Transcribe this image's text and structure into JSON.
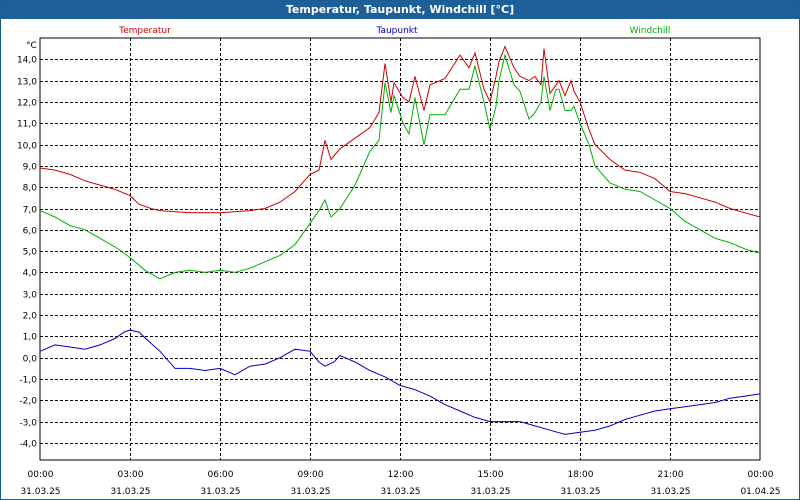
{
  "window": {
    "title": "Temperatur, Taupunkt, Windchill [°C]"
  },
  "chart_data": {
    "type": "line",
    "title": "Temperatur, Taupunkt, Windchill [°C]",
    "ylabel": "°C",
    "ylim": [
      -4.8,
      15.0
    ],
    "xlim": [
      0,
      24
    ],
    "grid": true,
    "yticks": [
      "14,0",
      "13,0",
      "12,0",
      "11,0",
      "10,0",
      "9,0",
      "8,0",
      "7,0",
      "6,0",
      "5,0",
      "4,0",
      "3,0",
      "2,0",
      "1,0",
      "0,0",
      "-1,0",
      "-2,0",
      "-3,0",
      "-4,0"
    ],
    "xticks": [
      {
        "time": "00:00",
        "date": "31.03.25"
      },
      {
        "time": "03:00",
        "date": "31.03.25"
      },
      {
        "time": "06:00",
        "date": "31.03.25"
      },
      {
        "time": "09:00",
        "date": "31.03.25"
      },
      {
        "time": "12:00",
        "date": "31.03.25"
      },
      {
        "time": "15:00",
        "date": "31.03.25"
      },
      {
        "time": "18:00",
        "date": "31.03.25"
      },
      {
        "time": "21:00",
        "date": "31.03.25"
      },
      {
        "time": "00:00",
        "date": "01.04.25"
      }
    ],
    "series": [
      {
        "name": "Temperatur",
        "color": "#cc0000",
        "x": [
          0,
          0.5,
          1,
          1.5,
          2,
          2.5,
          3,
          3.3,
          3.7,
          4,
          5,
          6,
          7,
          7.5,
          8,
          8.5,
          9,
          9.3,
          9.5,
          9.7,
          10,
          10.5,
          11,
          11.3,
          11.5,
          11.7,
          11.8,
          12.1,
          12.3,
          12.5,
          12.8,
          13,
          13.5,
          14,
          14.3,
          14.5,
          14.8,
          15,
          15.2,
          15.3,
          15.5,
          15.8,
          16,
          16.3,
          16.5,
          16.7,
          16.8,
          17,
          17.2,
          17.3,
          17.5,
          17.7,
          17.8,
          18,
          18.3,
          18.5,
          19,
          19.5,
          20,
          20.5,
          21,
          21.5,
          22,
          22.5,
          23,
          23.5,
          24
        ],
        "y": [
          8.9,
          8.8,
          8.6,
          8.3,
          8.1,
          7.9,
          7.6,
          7.2,
          7.0,
          6.9,
          6.8,
          6.8,
          6.9,
          7.0,
          7.3,
          7.8,
          8.6,
          8.8,
          10.2,
          9.3,
          9.8,
          10.3,
          10.8,
          11.5,
          13.8,
          12.0,
          12.9,
          12.2,
          12.0,
          13.2,
          11.6,
          12.8,
          13.1,
          14.2,
          13.6,
          14.3,
          12.6,
          12.0,
          13.2,
          13.9,
          14.6,
          13.6,
          13.2,
          13.0,
          13.2,
          12.8,
          14.5,
          12.4,
          12.8,
          13.0,
          12.3,
          13.0,
          12.5,
          12.0,
          10.7,
          10.0,
          9.3,
          8.8,
          8.7,
          8.4,
          7.8,
          7.7,
          7.5,
          7.3,
          7.0,
          6.8,
          6.6
        ]
      },
      {
        "name": "Taupunkt",
        "color": "#0000c0",
        "x": [
          0,
          0.5,
          1,
          1.5,
          2,
          2.5,
          2.8,
          3,
          3.3,
          3.6,
          4,
          4.5,
          5,
          5.5,
          6,
          6.5,
          7,
          7.5,
          8,
          8.5,
          9,
          9.3,
          9.5,
          9.8,
          10,
          10.5,
          11,
          11.5,
          12,
          12.5,
          13,
          13.5,
          14,
          14.5,
          15,
          15.5,
          16,
          16.5,
          17,
          17.5,
          18,
          18.5,
          19,
          19.5,
          20,
          20.5,
          21,
          21.5,
          22,
          22.5,
          23,
          23.5,
          24
        ],
        "y": [
          0.3,
          0.6,
          0.5,
          0.4,
          0.6,
          0.9,
          1.2,
          1.3,
          1.2,
          0.8,
          0.3,
          -0.5,
          -0.5,
          -0.6,
          -0.5,
          -0.8,
          -0.4,
          -0.3,
          0.0,
          0.4,
          0.3,
          -0.2,
          -0.4,
          -0.2,
          0.1,
          -0.2,
          -0.6,
          -0.9,
          -1.3,
          -1.5,
          -1.8,
          -2.2,
          -2.5,
          -2.8,
          -3.0,
          -3.0,
          -3.0,
          -3.2,
          -3.4,
          -3.6,
          -3.5,
          -3.4,
          -3.2,
          -2.9,
          -2.7,
          -2.5,
          -2.4,
          -2.3,
          -2.2,
          -2.1,
          -1.9,
          -1.8,
          -1.7
        ]
      },
      {
        "name": "Windchill",
        "color": "#00b000",
        "x": [
          0,
          0.5,
          1,
          1.5,
          2,
          2.5,
          3,
          3.5,
          4,
          4.5,
          5,
          5.5,
          6,
          6.5,
          7,
          7.5,
          8,
          8.5,
          9,
          9.3,
          9.5,
          9.7,
          10,
          10.5,
          11,
          11.3,
          11.5,
          11.7,
          11.8,
          12.1,
          12.3,
          12.5,
          12.8,
          13,
          13.5,
          14,
          14.3,
          14.5,
          14.8,
          15,
          15.2,
          15.3,
          15.5,
          15.8,
          16,
          16.3,
          16.5,
          16.7,
          16.8,
          17,
          17.2,
          17.3,
          17.5,
          17.7,
          17.8,
          18,
          18.3,
          18.5,
          19,
          19.5,
          20,
          20.5,
          21,
          21.5,
          22,
          22.5,
          23,
          23.5,
          24
        ],
        "y": [
          6.9,
          6.6,
          6.2,
          6.0,
          5.6,
          5.2,
          4.7,
          4.1,
          3.7,
          4.0,
          4.1,
          4.0,
          4.1,
          4.0,
          4.2,
          4.5,
          4.8,
          5.3,
          6.3,
          6.9,
          7.4,
          6.6,
          7.0,
          8.1,
          9.7,
          10.2,
          12.9,
          11.5,
          12.3,
          11.0,
          10.5,
          12.2,
          10.0,
          11.4,
          11.4,
          12.6,
          12.6,
          13.7,
          12.0,
          10.7,
          11.8,
          13.0,
          14.2,
          12.8,
          12.5,
          11.2,
          11.5,
          12.0,
          13.2,
          11.6,
          12.6,
          12.6,
          11.6,
          11.6,
          11.8,
          11.0,
          10.0,
          9.0,
          8.2,
          7.9,
          7.8,
          7.4,
          7.0,
          6.4,
          6.0,
          5.6,
          5.4,
          5.1,
          4.9
        ]
      }
    ]
  }
}
